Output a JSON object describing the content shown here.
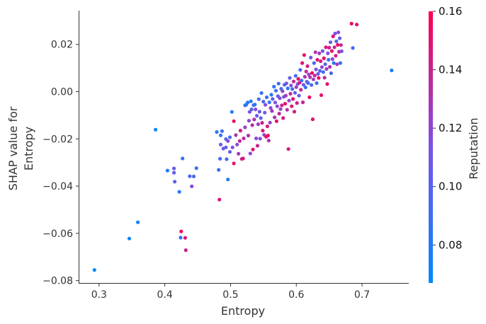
{
  "chart_data": {
    "type": "scatter",
    "title": "",
    "xlabel": "Entropy",
    "ylabel_lines": [
      "SHAP value for",
      "Entropy"
    ],
    "xlim": [
      0.27,
      0.77
    ],
    "ylim": [
      -0.081,
      0.034
    ],
    "xticks": [
      0.3,
      0.4,
      0.5,
      0.6,
      0.7
    ],
    "yticks": [
      -0.08,
      -0.06,
      -0.04,
      -0.02,
      0.0,
      0.02
    ],
    "xtick_labels": [
      "0.3",
      "0.4",
      "0.5",
      "0.6",
      "0.7"
    ],
    "ytick_labels": [
      "−0.08",
      "−0.06",
      "−0.04",
      "−0.02",
      "0.00",
      "0.02"
    ],
    "grid": false,
    "colorbar": {
      "label": "Reputation",
      "range": [
        0.067,
        0.16
      ],
      "ticks": [
        0.08,
        0.1,
        0.12,
        0.14,
        0.16
      ],
      "tick_labels": [
        "0.08",
        "0.10",
        "0.12",
        "0.14",
        "0.16"
      ],
      "color_low": "#008afb",
      "color_mid": "#7c52e6",
      "color_high": "#ff0052"
    },
    "points": [
      [
        0.293,
        -0.0755,
        0.067
      ],
      [
        0.346,
        -0.0622,
        0.07
      ],
      [
        0.359,
        -0.0553,
        0.072
      ],
      [
        0.386,
        -0.0161,
        0.071
      ],
      [
        0.404,
        -0.0334,
        0.08
      ],
      [
        0.414,
        -0.0325,
        0.104
      ],
      [
        0.414,
        -0.0343,
        0.103
      ],
      [
        0.415,
        -0.0381,
        0.101
      ],
      [
        0.422,
        -0.0424,
        0.082
      ],
      [
        0.424,
        -0.0618,
        0.085
      ],
      [
        0.425,
        -0.0592,
        0.155
      ],
      [
        0.427,
        -0.0283,
        0.087
      ],
      [
        0.431,
        -0.0619,
        0.148
      ],
      [
        0.432,
        -0.0671,
        0.14
      ],
      [
        0.438,
        -0.0358,
        0.098
      ],
      [
        0.441,
        -0.0401,
        0.117
      ],
      [
        0.444,
        -0.0359,
        0.095
      ],
      [
        0.448,
        -0.0324,
        0.088
      ],
      [
        0.479,
        -0.0171,
        0.083
      ],
      [
        0.482,
        -0.0331,
        0.09
      ],
      [
        0.483,
        -0.0457,
        0.145
      ],
      [
        0.484,
        -0.0284,
        0.093
      ],
      [
        0.485,
        -0.0185,
        0.088
      ],
      [
        0.485,
        -0.0224,
        0.11
      ],
      [
        0.487,
        -0.0167,
        0.087
      ],
      [
        0.489,
        -0.0241,
        0.108
      ],
      [
        0.493,
        -0.0236,
        0.106
      ],
      [
        0.493,
        -0.0201,
        0.098
      ],
      [
        0.494,
        -0.0286,
        0.093
      ],
      [
        0.496,
        -0.0372,
        0.081
      ],
      [
        0.496,
        -0.0209,
        0.12
      ],
      [
        0.499,
        -0.0255,
        0.104
      ],
      [
        0.499,
        -0.0193,
        0.095
      ],
      [
        0.502,
        -0.0086,
        0.078
      ],
      [
        0.503,
        -0.0236,
        0.113
      ],
      [
        0.505,
        -0.0125,
        0.15
      ],
      [
        0.505,
        -0.0304,
        0.15
      ],
      [
        0.508,
        -0.0184,
        0.13
      ],
      [
        0.51,
        -0.0224,
        0.118
      ],
      [
        0.512,
        -0.0263,
        0.127
      ],
      [
        0.514,
        -0.0209,
        0.14
      ],
      [
        0.515,
        -0.0165,
        0.143
      ],
      [
        0.517,
        -0.0285,
        0.142
      ],
      [
        0.519,
        -0.0283,
        0.145
      ],
      [
        0.52,
        -0.0198,
        0.135
      ],
      [
        0.522,
        -0.0058,
        0.089
      ],
      [
        0.522,
        -0.0151,
        0.125
      ],
      [
        0.524,
        -0.0055,
        0.084
      ],
      [
        0.526,
        -0.0046,
        0.079
      ],
      [
        0.527,
        -0.0186,
        0.13
      ],
      [
        0.528,
        -0.0123,
        0.12
      ],
      [
        0.529,
        -0.0086,
        0.113
      ],
      [
        0.53,
        -0.0262,
        0.118
      ],
      [
        0.531,
        -0.0041,
        0.082
      ],
      [
        0.532,
        -0.0075,
        0.099
      ],
      [
        0.533,
        -0.0142,
        0.135
      ],
      [
        0.534,
        -0.0245,
        0.152
      ],
      [
        0.535,
        -0.0057,
        0.094
      ],
      [
        0.536,
        -0.0118,
        0.131
      ],
      [
        0.537,
        -0.0055,
        0.085
      ],
      [
        0.538,
        -0.0075,
        0.116
      ],
      [
        0.539,
        -0.0198,
        0.12
      ],
      [
        0.54,
        -0.0102,
        0.11
      ],
      [
        0.541,
        -0.0229,
        0.141
      ],
      [
        0.542,
        -0.0138,
        0.125
      ],
      [
        0.543,
        -0.0032,
        0.09
      ],
      [
        0.544,
        -0.0085,
        0.104
      ],
      [
        0.545,
        -0.0199,
        0.112
      ],
      [
        0.546,
        -0.0112,
        0.1
      ],
      [
        0.547,
        -0.0006,
        0.087
      ],
      [
        0.548,
        -0.0132,
        0.145
      ],
      [
        0.549,
        -0.0165,
        0.148
      ],
      [
        0.55,
        -0.0042,
        0.097
      ],
      [
        0.551,
        -0.0183,
        0.121
      ],
      [
        0.552,
        -0.0089,
        0.107
      ],
      [
        0.553,
        -0.0056,
        0.117
      ],
      [
        0.554,
        -0.0191,
        0.152
      ],
      [
        0.555,
        -0.0024,
        0.089
      ],
      [
        0.556,
        -0.0147,
        0.144
      ],
      [
        0.557,
        -0.0186,
        0.156
      ],
      [
        0.558,
        -0.0207,
        0.131
      ],
      [
        0.559,
        -0.0045,
        0.086
      ],
      [
        0.56,
        -0.0131,
        0.124
      ],
      [
        0.561,
        -0.0069,
        0.118
      ],
      [
        0.562,
        -0.0013,
        0.083
      ],
      [
        0.563,
        -0.0082,
        0.13
      ],
      [
        0.564,
        -0.0031,
        0.105
      ],
      [
        0.566,
        0.0021,
        0.087
      ],
      [
        0.567,
        -0.0109,
        0.128
      ],
      [
        0.568,
        -0.0046,
        0.113
      ],
      [
        0.569,
        0.0004,
        0.092
      ],
      [
        0.57,
        -0.0125,
        0.15
      ],
      [
        0.571,
        -0.0062,
        0.12
      ],
      [
        0.572,
        -0.0019,
        0.105
      ],
      [
        0.573,
        0.0034,
        0.09
      ],
      [
        0.574,
        -0.0093,
        0.138
      ],
      [
        0.575,
        -0.0028,
        0.115
      ],
      [
        0.576,
        -0.0074,
        0.125
      ],
      [
        0.577,
        0.0012,
        0.098
      ],
      [
        0.578,
        -0.0058,
        0.14
      ],
      [
        0.579,
        0.0002,
        0.118
      ],
      [
        0.58,
        -0.0112,
        0.145
      ],
      [
        0.581,
        -0.0022,
        0.108
      ],
      [
        0.582,
        0.0029,
        0.095
      ],
      [
        0.583,
        -0.0051,
        0.153
      ],
      [
        0.584,
        -0.0017,
        0.128
      ],
      [
        0.585,
        0.0035,
        0.112
      ],
      [
        0.586,
        -0.0077,
        0.133
      ],
      [
        0.587,
        0.0014,
        0.085
      ],
      [
        0.588,
        -0.0243,
        0.145
      ],
      [
        0.589,
        -0.0038,
        0.121
      ],
      [
        0.59,
        0.0058,
        0.103
      ],
      [
        0.591,
        -0.0009,
        0.135
      ],
      [
        0.592,
        0.0026,
        0.117
      ],
      [
        0.593,
        -0.0062,
        0.148
      ],
      [
        0.594,
        0.0011,
        0.094
      ],
      [
        0.595,
        -0.0031,
        0.152
      ],
      [
        0.596,
        0.0043,
        0.139
      ],
      [
        0.597,
        -0.0085,
        0.145
      ],
      [
        0.598,
        -0.0005,
        0.108
      ],
      [
        0.599,
        0.0067,
        0.089
      ],
      [
        0.6,
        0.0019,
        0.126
      ],
      [
        0.601,
        -0.0048,
        0.142
      ],
      [
        0.602,
        0.0032,
        0.113
      ],
      [
        0.603,
        0.0054,
        0.155
      ],
      [
        0.604,
        -0.0017,
        0.102
      ],
      [
        0.605,
        0.0038,
        0.15
      ],
      [
        0.606,
        0.0092,
        0.093
      ],
      [
        0.607,
        0.0008,
        0.137
      ],
      [
        0.608,
        0.0047,
        0.085
      ],
      [
        0.609,
        0.0121,
        0.15
      ],
      [
        0.61,
        -0.0045,
        0.14
      ],
      [
        0.611,
        0.0029,
        0.112
      ],
      [
        0.612,
        0.0155,
        0.153
      ],
      [
        0.613,
        0.0063,
        0.128
      ],
      [
        0.614,
        0.0018,
        0.088
      ],
      [
        0.615,
        0.0085,
        0.138
      ],
      [
        0.616,
        0.0042,
        0.106
      ],
      [
        0.617,
        0.0108,
        0.145
      ],
      [
        0.618,
        0.0036,
        0.09
      ],
      [
        0.619,
        0.0073,
        0.12
      ],
      [
        0.62,
        -0.0024,
        0.152
      ],
      [
        0.621,
        0.0061,
        0.133
      ],
      [
        0.622,
        0.0144,
        0.111
      ],
      [
        0.623,
        0.0028,
        0.098
      ],
      [
        0.624,
        0.0079,
        0.155
      ],
      [
        0.625,
        -0.0117,
        0.15
      ],
      [
        0.626,
        0.0052,
        0.124
      ],
      [
        0.627,
        0.0121,
        0.093
      ],
      [
        0.628,
        0.0068,
        0.141
      ],
      [
        0.629,
        0.0167,
        0.13
      ],
      [
        0.63,
        0.0094,
        0.115
      ],
      [
        0.631,
        0.0036,
        0.087
      ],
      [
        0.632,
        0.0135,
        0.148
      ],
      [
        0.633,
        0.0075,
        0.104
      ],
      [
        0.634,
        0.0058,
        0.155
      ],
      [
        0.635,
        0.0162,
        0.127
      ],
      [
        0.636,
        0.0088,
        0.097
      ],
      [
        0.637,
        0.0129,
        0.142
      ],
      [
        0.638,
        -0.0015,
        0.151
      ],
      [
        0.639,
        0.0104,
        0.12
      ],
      [
        0.64,
        0.0172,
        0.11
      ],
      [
        0.641,
        0.0083,
        0.09
      ],
      [
        0.642,
        0.0141,
        0.155
      ],
      [
        0.643,
        0.0059,
        0.136
      ],
      [
        0.644,
        0.0116,
        0.1
      ],
      [
        0.645,
        0.0188,
        0.147
      ],
      [
        0.646,
        0.0096,
        0.125
      ],
      [
        0.647,
        0.0032,
        0.153
      ],
      [
        0.648,
        0.0162,
        0.114
      ],
      [
        0.649,
        0.0135,
        0.089
      ],
      [
        0.65,
        0.0186,
        0.143
      ],
      [
        0.651,
        0.0105,
        0.132
      ],
      [
        0.652,
        0.0209,
        0.105
      ],
      [
        0.653,
        0.0078,
        0.095
      ],
      [
        0.654,
        0.0172,
        0.154
      ],
      [
        0.655,
        0.0138,
        0.12
      ],
      [
        0.656,
        0.0234,
        0.15
      ],
      [
        0.657,
        0.0121,
        0.087
      ],
      [
        0.658,
        0.0188,
        0.138
      ],
      [
        0.659,
        0.0246,
        0.11
      ],
      [
        0.66,
        0.0152,
        0.145
      ],
      [
        0.661,
        0.0213,
        0.093
      ],
      [
        0.662,
        0.0116,
        0.128
      ],
      [
        0.663,
        0.0198,
        0.155
      ],
      [
        0.664,
        0.0251,
        0.116
      ],
      [
        0.665,
        0.0169,
        0.141
      ],
      [
        0.666,
        0.0226,
        0.102
      ],
      [
        0.667,
        0.0121,
        0.09
      ],
      [
        0.668,
        0.0197,
        0.135
      ],
      [
        0.669,
        0.0171,
        0.112
      ],
      [
        0.684,
        0.0288,
        0.155
      ],
      [
        0.686,
        0.0185,
        0.09
      ],
      [
        0.692,
        0.0284,
        0.148
      ],
      [
        0.745,
        0.009,
        0.078
      ]
    ]
  }
}
